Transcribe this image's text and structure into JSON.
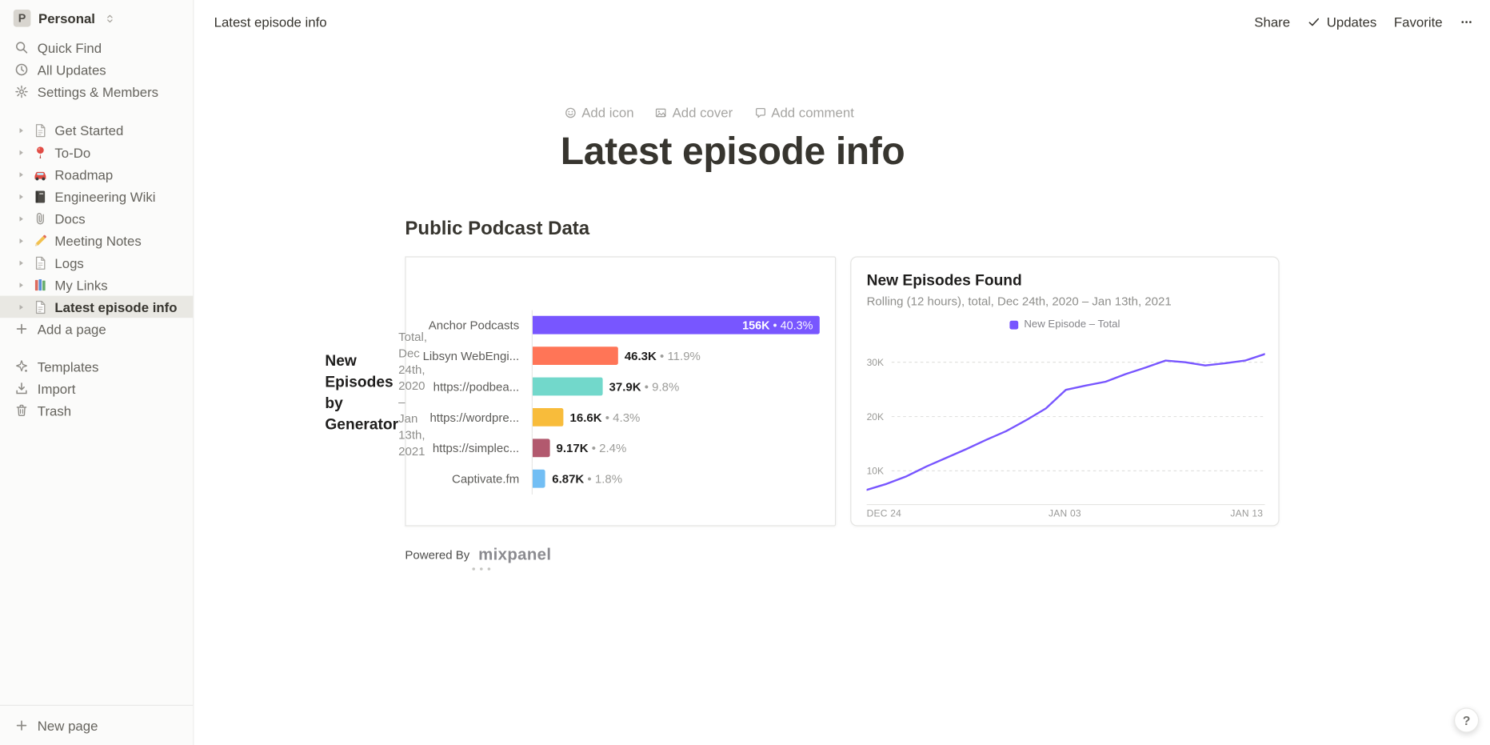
{
  "sidebar": {
    "workspace": {
      "initial": "P",
      "name": "Personal"
    },
    "top_items": [
      {
        "icon": "search-icon",
        "label": "Quick Find"
      },
      {
        "icon": "clock-icon",
        "label": "All Updates"
      },
      {
        "icon": "gear-icon",
        "label": "Settings & Members"
      }
    ],
    "pages": [
      {
        "icon": "page-icon",
        "label": "Get Started",
        "selected": false
      },
      {
        "icon": "pin-icon",
        "label": "To-Do",
        "selected": false
      },
      {
        "icon": "car-icon",
        "label": "Roadmap",
        "selected": false
      },
      {
        "icon": "notebook-icon",
        "label": "Engineering Wiki",
        "selected": false
      },
      {
        "icon": "paperclip-icon",
        "label": "Docs",
        "selected": false
      },
      {
        "icon": "pencil-icon",
        "label": "Meeting Notes",
        "selected": false
      },
      {
        "icon": "page-icon",
        "label": "Logs",
        "selected": false
      },
      {
        "icon": "books-icon",
        "label": "My Links",
        "selected": false
      },
      {
        "icon": "page-icon",
        "label": "Latest episode info",
        "selected": true
      }
    ],
    "add_page_label": "Add a page",
    "footer_items": [
      {
        "icon": "templates-icon",
        "label": "Templates"
      },
      {
        "icon": "import-icon",
        "label": "Import"
      },
      {
        "icon": "trash-icon",
        "label": "Trash"
      }
    ],
    "new_page_label": "New page"
  },
  "topbar": {
    "breadcrumb": "Latest episode info",
    "share_label": "Share",
    "updates_label": "Updates",
    "favorite_label": "Favorite"
  },
  "page": {
    "controls": [
      {
        "icon": "emoji-icon",
        "label": "Add icon"
      },
      {
        "icon": "image-icon",
        "label": "Add cover"
      },
      {
        "icon": "comment-icon",
        "label": "Add comment"
      }
    ],
    "title": "Latest episode info",
    "section_heading": "Public Podcast Data",
    "powered_by_label": "Powered By",
    "mixpanel_label": "mixpanel"
  },
  "help_label": "?",
  "chart_data": [
    {
      "type": "bar",
      "orientation": "horizontal",
      "title": "New Episodes by Generator",
      "subtitle": "Total, Dec 24th, 2020 – Jan 13th, 2021",
      "categories": [
        "Anchor Podcasts",
        "Libsyn WebEngi...",
        "https://podbea...",
        "https://wordpre...",
        "https://simplec...",
        "Captivate.fm"
      ],
      "values_k": [
        156,
        46.3,
        37.9,
        16.6,
        9.17,
        6.87
      ],
      "value_labels": [
        "156K",
        "46.3K",
        "37.9K",
        "16.6K",
        "9.17K",
        "6.87K"
      ],
      "percent_labels": [
        "40.3%",
        "11.9%",
        "9.8%",
        "4.3%",
        "2.4%",
        "1.8%"
      ],
      "bullet_sep": " • ",
      "bar_colors": [
        "#7856ff",
        "#ff7557",
        "#72d8cb",
        "#f8bc3b",
        "#b2596e",
        "#72bef4"
      ],
      "xlim_k": [
        0,
        160
      ],
      "grid": "off"
    },
    {
      "type": "line",
      "title": "New Episodes Found",
      "subtitle": "Rolling (12 hours), total, Dec 24th, 2020 – Jan 13th, 2021",
      "legend": [
        {
          "label": "New Episode – Total",
          "color": "#7856ff"
        }
      ],
      "legend_position": "top-center",
      "grid": "horizontal-dashed",
      "x_ticks": [
        "DEC 24",
        "JAN 03",
        "JAN 13"
      ],
      "y_ticks": [
        "10K",
        "20K",
        "30K"
      ],
      "y_tick_values": [
        10000,
        20000,
        30000
      ],
      "ylim": [
        3700,
        34800
      ],
      "series": [
        {
          "name": "New Episode – Total",
          "x": [
            "Dec 24",
            "Dec 25",
            "Dec 26",
            "Dec 27",
            "Dec 28",
            "Dec 29",
            "Dec 30",
            "Dec 31",
            "Jan 01",
            "Jan 02",
            "Jan 03",
            "Jan 04",
            "Jan 05",
            "Jan 06",
            "Jan 07",
            "Jan 08",
            "Jan 09",
            "Jan 10",
            "Jan 11",
            "Jan 12",
            "Jan 13"
          ],
          "values": [
            6500,
            7600,
            9000,
            10800,
            12400,
            14000,
            15700,
            17300,
            19300,
            21500,
            24900,
            25700,
            26400,
            27800,
            29000,
            30300,
            30000,
            29400,
            29800,
            30300,
            31500
          ]
        }
      ]
    }
  ]
}
